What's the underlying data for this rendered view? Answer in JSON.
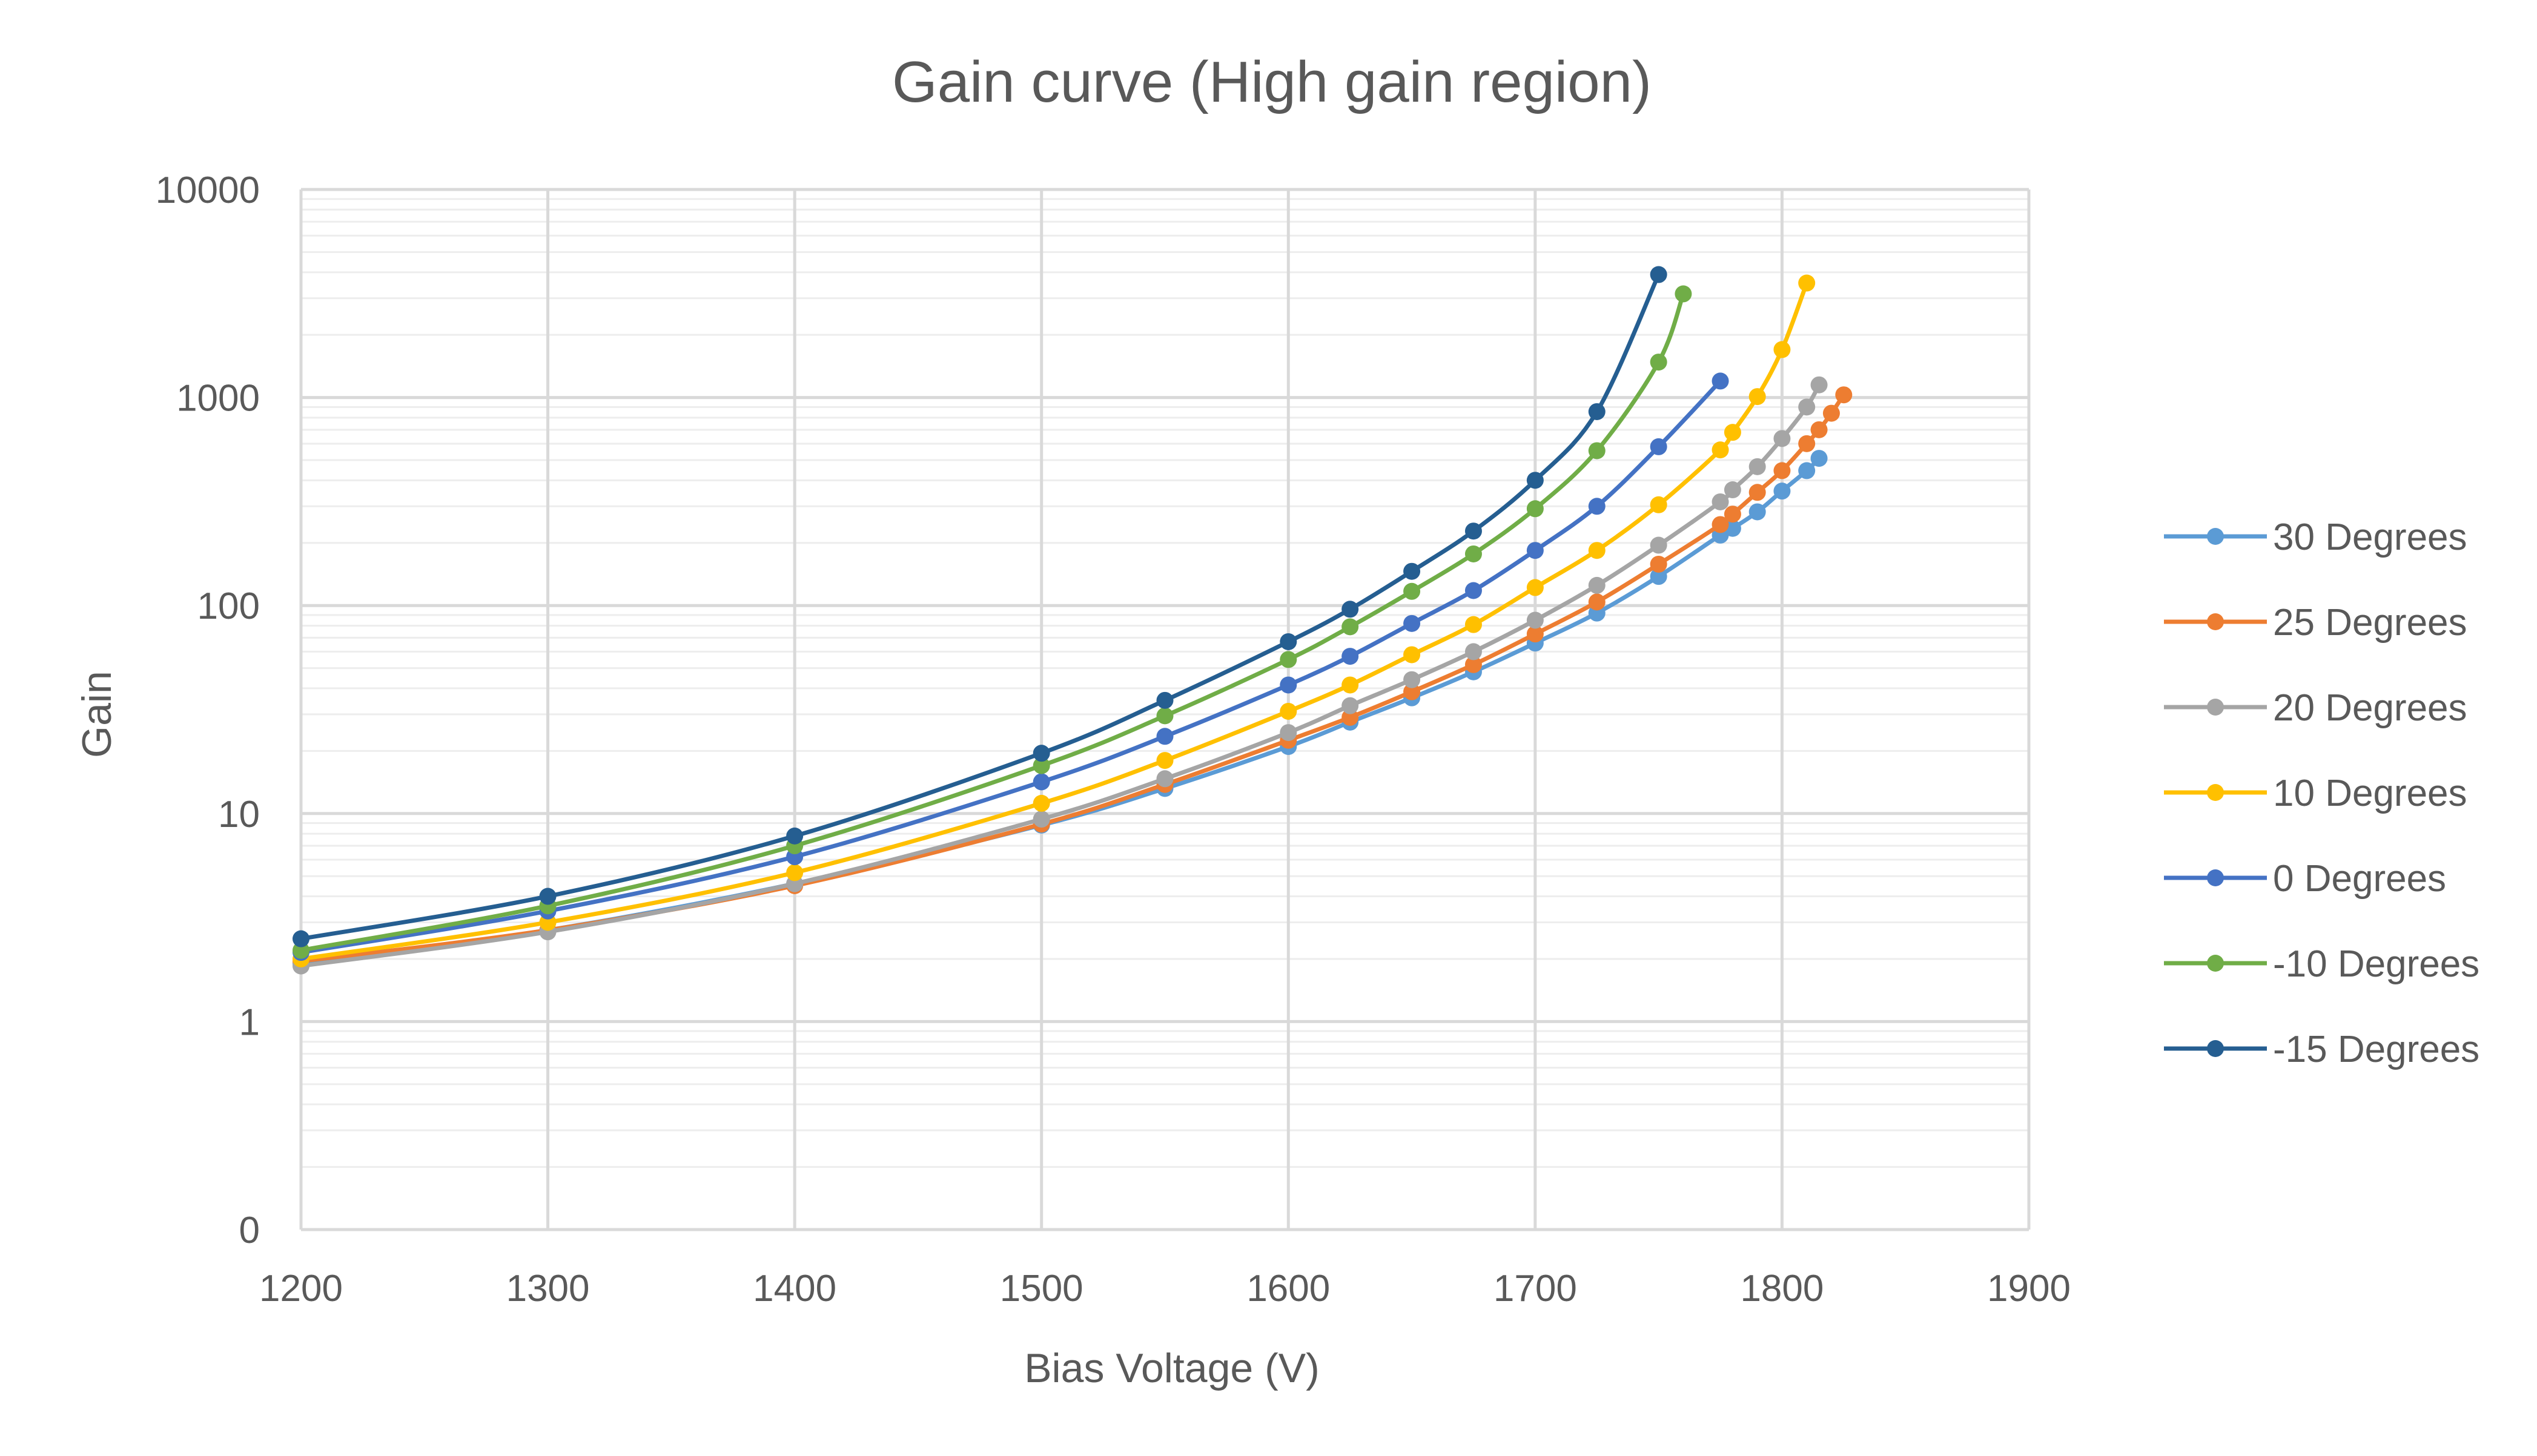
{
  "chart_data": {
    "type": "line",
    "title": "Gain curve (High gain region)",
    "xlabel": "Bias Voltage (V)",
    "ylabel": "Gain",
    "xlim": [
      1200,
      1900
    ],
    "ylim": [
      0.1,
      10000
    ],
    "y_scale": "log",
    "x_ticks": [
      1200,
      1300,
      1400,
      1500,
      1600,
      1700,
      1800,
      1900
    ],
    "y_ticks": [
      {
        "value": 0.1,
        "label": "0"
      },
      {
        "value": 1,
        "label": "1"
      },
      {
        "value": 10,
        "label": "10"
      },
      {
        "value": 100,
        "label": "100"
      },
      {
        "value": 1000,
        "label": "1000"
      },
      {
        "value": 10000,
        "label": "10000"
      }
    ],
    "grid": true,
    "legend_position": "right",
    "series": [
      {
        "name": "30 Degrees",
        "color": "#5B9BD5",
        "points": [
          [
            1200,
            1.9
          ],
          [
            1300,
            2.75
          ],
          [
            1400,
            4.6
          ],
          [
            1500,
            8.8
          ],
          [
            1550,
            13.2
          ],
          [
            1600,
            21
          ],
          [
            1625,
            27.5
          ],
          [
            1650,
            36
          ],
          [
            1675,
            48
          ],
          [
            1700,
            66
          ],
          [
            1725,
            92
          ],
          [
            1750,
            138
          ],
          [
            1775,
            218
          ],
          [
            1780,
            235
          ],
          [
            1790,
            282
          ],
          [
            1800,
            355
          ],
          [
            1810,
            445
          ],
          [
            1815,
            510
          ]
        ]
      },
      {
        "name": "25 Degrees",
        "color": "#ED7D31",
        "points": [
          [
            1200,
            1.95
          ],
          [
            1300,
            2.75
          ],
          [
            1400,
            4.5
          ],
          [
            1500,
            8.9
          ],
          [
            1550,
            13.8
          ],
          [
            1600,
            22.5
          ],
          [
            1625,
            29
          ],
          [
            1650,
            38.5
          ],
          [
            1675,
            52
          ],
          [
            1700,
            73
          ],
          [
            1725,
            104
          ],
          [
            1750,
            158
          ],
          [
            1775,
            245
          ],
          [
            1780,
            275
          ],
          [
            1790,
            350
          ],
          [
            1800,
            445
          ],
          [
            1810,
            600
          ],
          [
            1815,
            700
          ],
          [
            1820,
            840
          ],
          [
            1825,
            1030
          ]
        ]
      },
      {
        "name": "20 Degrees",
        "color": "#A5A5A5",
        "points": [
          [
            1200,
            1.85
          ],
          [
            1300,
            2.7
          ],
          [
            1400,
            4.6
          ],
          [
            1500,
            9.4
          ],
          [
            1550,
            14.7
          ],
          [
            1600,
            24.5
          ],
          [
            1625,
            33
          ],
          [
            1650,
            44
          ],
          [
            1675,
            60
          ],
          [
            1700,
            85
          ],
          [
            1725,
            125
          ],
          [
            1750,
            195
          ],
          [
            1775,
            315
          ],
          [
            1780,
            360
          ],
          [
            1790,
            465
          ],
          [
            1800,
            635
          ],
          [
            1810,
            900
          ],
          [
            1815,
            1150
          ]
        ]
      },
      {
        "name": "10 Degrees",
        "color": "#FFC000",
        "points": [
          [
            1200,
            2.0
          ],
          [
            1300,
            3.0
          ],
          [
            1400,
            5.2
          ],
          [
            1500,
            11.2
          ],
          [
            1550,
            18
          ],
          [
            1600,
            31
          ],
          [
            1625,
            41.5
          ],
          [
            1650,
            58
          ],
          [
            1675,
            81
          ],
          [
            1700,
            122
          ],
          [
            1725,
            184
          ],
          [
            1750,
            305
          ],
          [
            1775,
            560
          ],
          [
            1780,
            680
          ],
          [
            1790,
            1010
          ],
          [
            1800,
            1700
          ],
          [
            1810,
            3550
          ]
        ]
      },
      {
        "name": "0 Degrees",
        "color": "#4472C4",
        "points": [
          [
            1200,
            2.15
          ],
          [
            1300,
            3.4
          ],
          [
            1400,
            6.2
          ],
          [
            1500,
            14.2
          ],
          [
            1550,
            23.5
          ],
          [
            1600,
            41.5
          ],
          [
            1625,
            57
          ],
          [
            1650,
            82
          ],
          [
            1675,
            118
          ],
          [
            1700,
            184
          ],
          [
            1725,
            300
          ],
          [
            1750,
            580
          ],
          [
            1775,
            1200
          ]
        ]
      },
      {
        "name": "-10 Degrees",
        "color": "#70AD47",
        "points": [
          [
            1200,
            2.2
          ],
          [
            1300,
            3.6
          ],
          [
            1400,
            7.0
          ],
          [
            1500,
            17
          ],
          [
            1550,
            29.5
          ],
          [
            1600,
            55
          ],
          [
            1625,
            79
          ],
          [
            1650,
            117
          ],
          [
            1675,
            177
          ],
          [
            1700,
            292
          ],
          [
            1725,
            555
          ],
          [
            1750,
            1480
          ],
          [
            1760,
            3150
          ]
        ]
      },
      {
        "name": "-15 Degrees",
        "color": "#255E91",
        "points": [
          [
            1200,
            2.5
          ],
          [
            1300,
            4.0
          ],
          [
            1400,
            7.8
          ],
          [
            1500,
            19.5
          ],
          [
            1550,
            35
          ],
          [
            1600,
            67
          ],
          [
            1625,
            96
          ],
          [
            1650,
            146
          ],
          [
            1675,
            228
          ],
          [
            1700,
            400
          ],
          [
            1725,
            855
          ],
          [
            1750,
            3900
          ]
        ]
      }
    ]
  }
}
